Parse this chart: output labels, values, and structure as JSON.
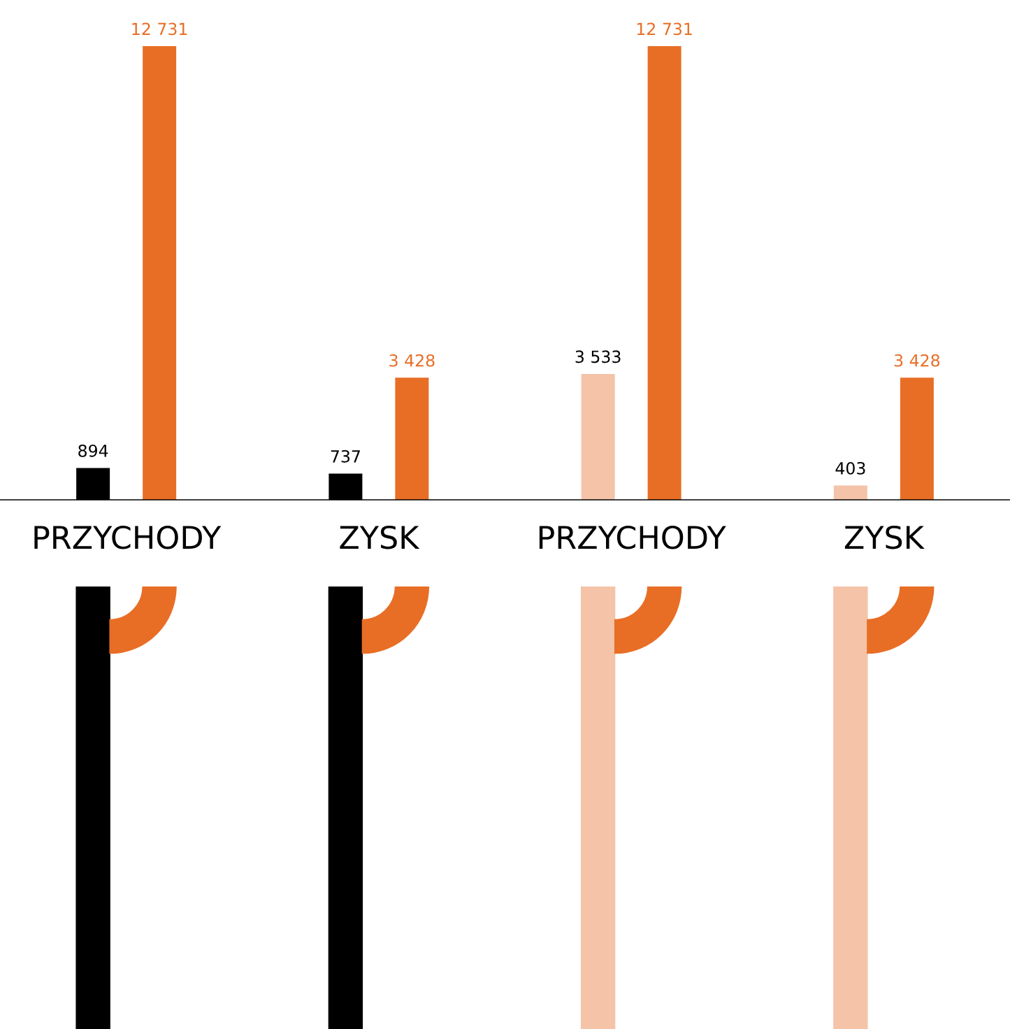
{
  "chart_data": {
    "type": "bar",
    "categories": [
      "PRZYCHODY",
      "ZYSK",
      "PRZYCHODY",
      "ZYSK"
    ],
    "data_labels": true,
    "legend": false,
    "grid": false,
    "tick_labels": "x",
    "series": [
      {
        "colors": [
          "#000000",
          "#000000",
          "#f4c3a8",
          "#f4c3a8"
        ],
        "values": [
          894,
          737,
          3533,
          403
        ]
      },
      {
        "color": "#e86e26",
        "values": [
          12731,
          3428,
          12731,
          3428
        ]
      }
    ]
  }
}
